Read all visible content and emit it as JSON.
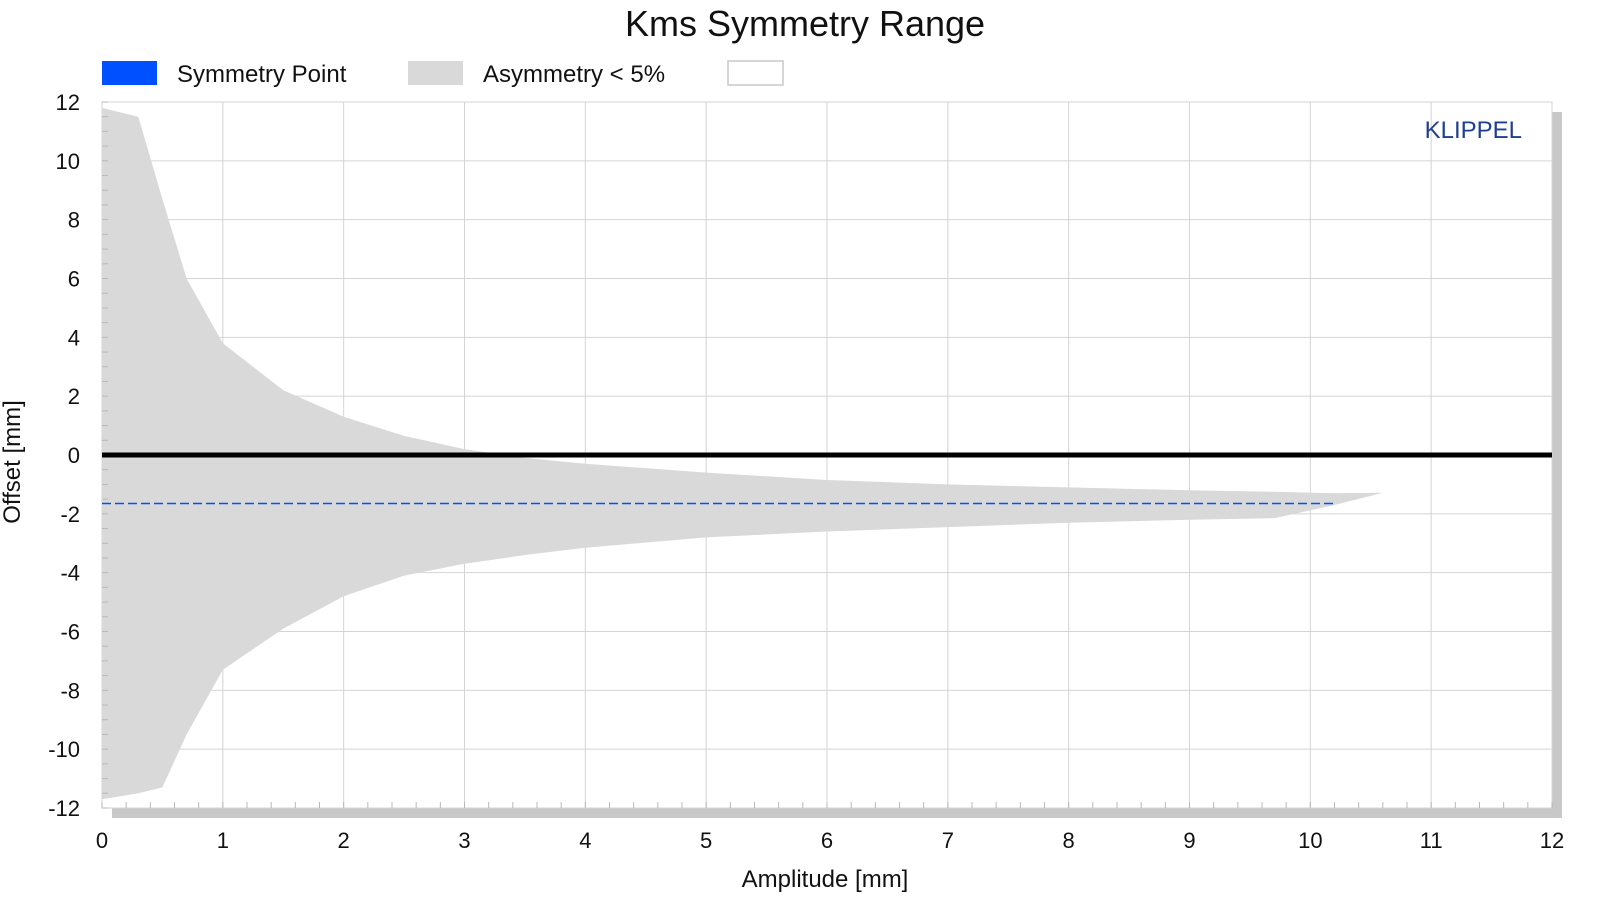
{
  "chart_data": {
    "type": "area",
    "title": "Kms Symmetry Range",
    "xlabel": "Amplitude [mm]",
    "ylabel": "Offset [mm]",
    "xlim": [
      0,
      12
    ],
    "ylim": [
      -12,
      12
    ],
    "xticks": [
      0,
      1,
      2,
      3,
      4,
      5,
      6,
      7,
      8,
      9,
      10,
      11,
      12
    ],
    "yticks": [
      12,
      10,
      8,
      6,
      4,
      2,
      0,
      -2,
      -4,
      -6,
      -8,
      -10,
      -12
    ],
    "grid": true,
    "legend_position": "top-left",
    "legend": [
      {
        "name": "Symmetry Point",
        "color": "#0050ff",
        "swatch": "filled"
      },
      {
        "name": "Asymmetry < 5%",
        "color": "#d9d9d9",
        "swatch": "filled"
      },
      {
        "name": "",
        "color": "#ffffff",
        "swatch": "outline"
      }
    ],
    "watermark": {
      "text": "KLIPPEL",
      "color": "#1f3f8f"
    },
    "series": [
      {
        "name": "Asymmetry < 5%",
        "kind": "band",
        "color": "#d9d9d9",
        "x": [
          0,
          0.3,
          0.5,
          0.7,
          1.0,
          1.5,
          2.0,
          2.5,
          3.0,
          3.5,
          4.0,
          5.0,
          6.0,
          7.0,
          8.0,
          9.0,
          9.7,
          10.2,
          10.6
        ],
        "upper": [
          11.8,
          11.5,
          8.7,
          6.0,
          3.8,
          2.2,
          1.3,
          0.65,
          0.2,
          -0.1,
          -0.3,
          -0.6,
          -0.85,
          -1.0,
          -1.1,
          -1.2,
          -1.25,
          -1.3,
          -1.28
        ],
        "lower": [
          -11.7,
          -11.5,
          -11.3,
          -9.5,
          -7.3,
          -5.9,
          -4.8,
          -4.1,
          -3.7,
          -3.4,
          -3.15,
          -2.8,
          -2.6,
          -2.45,
          -2.3,
          -2.2,
          -2.15,
          -1.7,
          -1.28
        ]
      },
      {
        "name": "Symmetry Point",
        "kind": "dashed-line",
        "color": "#0050ff",
        "x": [
          0,
          10.2
        ],
        "y": [
          -1.65,
          -1.65
        ]
      },
      {
        "name": "",
        "kind": "zero-line",
        "color": "#000000",
        "x": [
          0,
          12
        ],
        "y": [
          0,
          0
        ]
      }
    ]
  }
}
